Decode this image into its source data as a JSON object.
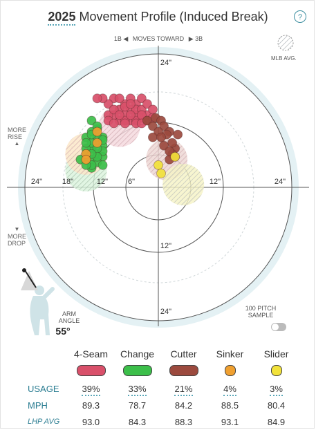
{
  "header": {
    "year": "2025",
    "title": "Movement Profile (Induced Break)",
    "help": "?"
  },
  "direction": {
    "left_arrow": "1B ◀",
    "text": "MOVES TOWARD",
    "right_arrow": "▶ 3B"
  },
  "mlb_avg_label": "MLB AVG.",
  "side_labels": {
    "rise_1": "MORE",
    "rise_2": "RISE",
    "drop_1": "MORE",
    "drop_2": "DROP",
    "up_arrow": "▲",
    "down_arrow": "▼"
  },
  "arm": {
    "label_1": "ARM",
    "label_2": "ANGLE",
    "value": "55°"
  },
  "sample": {
    "line1": "100 PITCH",
    "line2": "SAMPLE"
  },
  "colors": {
    "four_seam": "#d9506a",
    "change": "#3cbf4a",
    "cutter": "#9c4a3e",
    "sinker": "#f0a030",
    "slider": "#f2e23a",
    "accent": "#58a6b8"
  },
  "table": {
    "pitches": [
      "4-Seam",
      "Change",
      "Cutter",
      "Sinker",
      "Slider"
    ],
    "usage_label": "USAGE",
    "usage": [
      "39%",
      "33%",
      "21%",
      "4%",
      "3%"
    ],
    "mph_label": "MPH",
    "mph": [
      "89.3",
      "78.7",
      "84.2",
      "88.5",
      "80.4"
    ],
    "avg_label": "LHP AVG",
    "avg": [
      "93.0",
      "84.3",
      "88.3",
      "93.1",
      "84.9"
    ]
  },
  "chart_data": {
    "type": "scatter",
    "units": "inches",
    "ring_labels": [
      "24\"",
      "18\"",
      "12\"",
      "6\"",
      "6\"",
      "12\"",
      "24\"",
      "24\"",
      "12\"",
      "24\""
    ],
    "xlim": [
      -24,
      24
    ],
    "ylim": [
      -24,
      24
    ],
    "series": [
      {
        "name": "4-Seam",
        "color": "#d9506a",
        "avg": [
          -7,
          11
        ],
        "points": [
          [
            -8,
            16
          ],
          [
            -6,
            15
          ],
          [
            -4,
            15
          ],
          [
            -3,
            16
          ],
          [
            -5,
            14
          ],
          [
            -7,
            14
          ],
          [
            -9,
            15
          ],
          [
            -6,
            13
          ],
          [
            -4,
            13
          ],
          [
            -3,
            12.5
          ],
          [
            -2,
            13
          ],
          [
            -5,
            12
          ],
          [
            -7,
            12
          ],
          [
            -8,
            13
          ],
          [
            -6,
            12
          ],
          [
            -4,
            14
          ],
          [
            -3,
            14
          ],
          [
            -2,
            15
          ],
          [
            -1,
            14
          ],
          [
            -5,
            16
          ],
          [
            -7,
            16
          ],
          [
            -9,
            13
          ],
          [
            -10,
            16
          ],
          [
            -11,
            16
          ],
          [
            -9,
            12
          ],
          [
            -4,
            12
          ],
          [
            -3,
            13
          ],
          [
            -2,
            12
          ],
          [
            -6,
            14.5
          ],
          [
            -8,
            14
          ],
          [
            -5,
            13
          ],
          [
            -1,
            12.5
          ],
          [
            -7,
            13
          ],
          [
            -6,
            11.5
          ],
          [
            -4,
            11.5
          ],
          [
            -8,
            11.5
          ],
          [
            -5,
            15
          ],
          [
            -3,
            11.5
          ]
        ]
      },
      {
        "name": "Change",
        "color": "#3cbf4a",
        "avg": [
          -13,
          3
        ],
        "points": [
          [
            -12,
            12
          ],
          [
            -11,
            10.5
          ],
          [
            -12,
            10
          ],
          [
            -10,
            9
          ],
          [
            -11,
            8
          ],
          [
            -10,
            7.5
          ],
          [
            -12,
            7
          ],
          [
            -11,
            6
          ],
          [
            -13,
            7
          ],
          [
            -10,
            5.5
          ],
          [
            -12,
            5
          ],
          [
            -11,
            4.5
          ],
          [
            -13,
            5
          ],
          [
            -12,
            3.5
          ],
          [
            -10,
            6.5
          ],
          [
            -13,
            9
          ],
          [
            -11,
            9
          ],
          [
            -12,
            8
          ],
          [
            -13,
            6
          ],
          [
            -10,
            8.5
          ],
          [
            -11,
            7
          ],
          [
            -12,
            4
          ],
          [
            -14,
            5
          ],
          [
            -13,
            4
          ],
          [
            -11,
            5.5
          ],
          [
            -10,
            4
          ],
          [
            -12,
            9.5
          ],
          [
            -11,
            11
          ],
          [
            -13,
            8
          ],
          [
            -12,
            6
          ]
        ]
      },
      {
        "name": "Cutter",
        "color": "#9c4a3e",
        "avg": [
          1.5,
          5
        ],
        "points": [
          [
            -2,
            12
          ],
          [
            -0.5,
            12.5
          ],
          [
            0.5,
            12
          ],
          [
            1,
            11
          ],
          [
            -1,
            11
          ],
          [
            0,
            10
          ],
          [
            2,
            10
          ],
          [
            1.5,
            9.5
          ],
          [
            -1,
            9
          ],
          [
            3.5,
            9.5
          ],
          [
            3,
            7
          ],
          [
            2.5,
            8
          ],
          [
            1,
            7.5
          ],
          [
            2.5,
            6
          ],
          [
            3,
            5.5
          ],
          [
            2,
            5
          ],
          [
            2,
            6.5
          ],
          [
            0.5,
            9
          ]
        ]
      },
      {
        "name": "Sinker",
        "color": "#f0a030",
        "avg": [
          -13,
          6
        ],
        "points": [
          [
            -11,
            10
          ],
          [
            -11,
            8
          ],
          [
            -13,
            6
          ],
          [
            -13,
            5
          ]
        ]
      },
      {
        "name": "Slider",
        "color": "#f2e23a",
        "avg": [
          4.5,
          0.5
        ],
        "points": [
          [
            3,
            5.5
          ],
          [
            0,
            4
          ],
          [
            0.5,
            2.5
          ]
        ]
      }
    ]
  }
}
